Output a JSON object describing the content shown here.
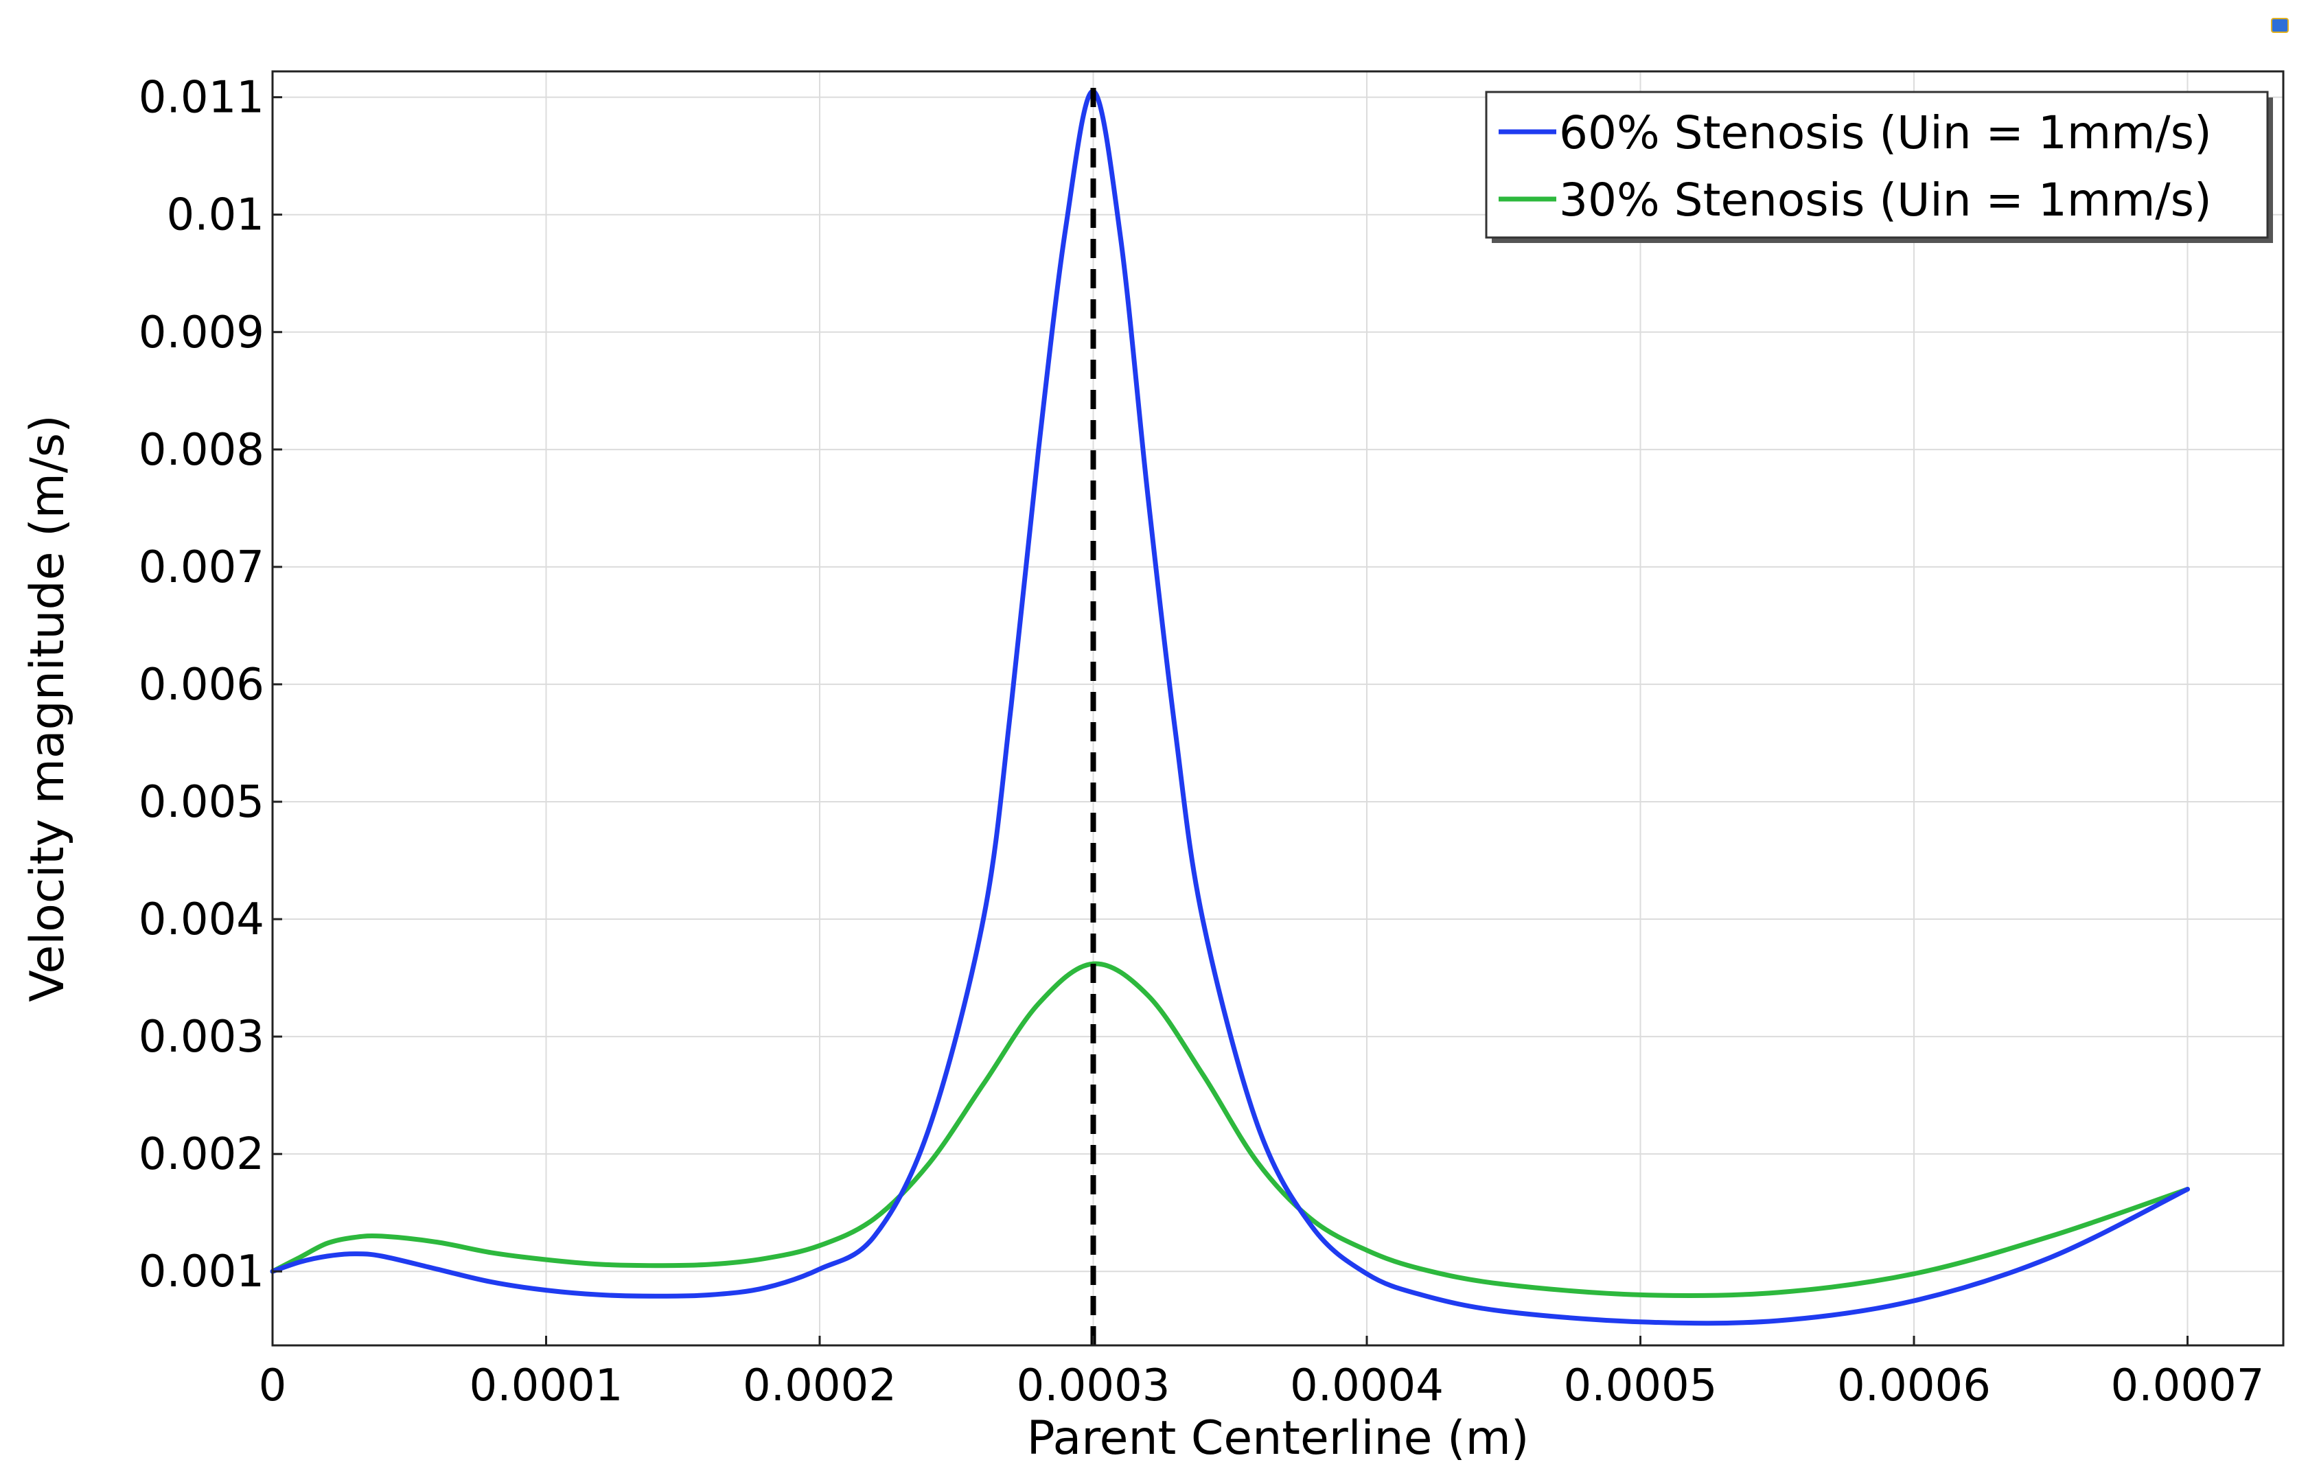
{
  "icons": {
    "corner": "snapshot-icon"
  },
  "chart_data": {
    "type": "line",
    "title": "",
    "xlabel": "Parent Centerline  (m)",
    "ylabel": "Velocity magnitude (m/s)",
    "xlim": [
      0,
      0.000735
    ],
    "ylim": [
      0.00037,
      0.01122
    ],
    "x_ticks": [
      0,
      0.0001,
      0.0002,
      0.0003,
      0.0004,
      0.0005,
      0.0006,
      0.0007
    ],
    "x_tick_labels": [
      "0",
      "0.0001",
      "0.0002",
      "0.0003",
      "0.0004",
      "0.0005",
      "0.0006",
      "0.0007"
    ],
    "y_ticks": [
      0.001,
      0.002,
      0.003,
      0.004,
      0.005,
      0.006,
      0.007,
      0.008,
      0.009,
      0.01,
      0.011
    ],
    "y_tick_labels": [
      "0.001",
      "0.002",
      "0.003",
      "0.004",
      "0.005",
      "0.006",
      "0.007",
      "0.008",
      "0.009",
      "0.01",
      "0.011"
    ],
    "grid": true,
    "legend_position": "top-right",
    "reference_line": {
      "x": 0.0003,
      "style": "dashed",
      "color": "#000000"
    },
    "series": [
      {
        "name": "60% Stenosis (Uin = 1mm/s)",
        "color": "#1f3bf0",
        "x": [
          0,
          1e-05,
          2e-05,
          3e-05,
          4e-05,
          6e-05,
          8e-05,
          0.0001,
          0.00012,
          0.00014,
          0.00016,
          0.00018,
          0.0002,
          0.00022,
          0.00024,
          0.00026,
          0.00027,
          0.00028,
          0.00029,
          0.0003,
          0.00031,
          0.00032,
          0.00033,
          0.00034,
          0.00036,
          0.00038,
          0.0004,
          0.00042,
          0.00045,
          0.0005,
          0.00055,
          0.0006,
          0.00065,
          0.0007
        ],
        "y": [
          0.001,
          0.00108,
          0.00113,
          0.00115,
          0.00113,
          0.00102,
          0.00091,
          0.00084,
          0.0008,
          0.00079,
          0.0008,
          0.00086,
          0.00102,
          0.0013,
          0.00222,
          0.00402,
          0.00582,
          0.008,
          0.0099,
          0.01105,
          0.0098,
          0.0076,
          0.0056,
          0.004,
          0.00225,
          0.00138,
          0.00098,
          0.0008,
          0.00066,
          0.00057,
          0.00058,
          0.00075,
          0.00112,
          0.0017
        ]
      },
      {
        "name": "30% Stenosis (Uin = 1mm/s)",
        "color": "#2db83d",
        "x": [
          0,
          1e-05,
          2e-05,
          3e-05,
          4e-05,
          6e-05,
          8e-05,
          0.0001,
          0.00012,
          0.00014,
          0.00016,
          0.00018,
          0.0002,
          0.00022,
          0.00024,
          0.00026,
          0.00028,
          0.0003,
          0.00032,
          0.00034,
          0.00036,
          0.00038,
          0.0004,
          0.00042,
          0.00045,
          0.0005,
          0.00055,
          0.0006,
          0.00065,
          0.0007
        ],
        "y": [
          0.001,
          0.00112,
          0.00124,
          0.00129,
          0.0013,
          0.00125,
          0.00116,
          0.0011,
          0.00106,
          0.00105,
          0.00106,
          0.00111,
          0.00122,
          0.00145,
          0.00192,
          0.0026,
          0.00328,
          0.00362,
          0.00335,
          0.00268,
          0.00193,
          0.00144,
          0.00118,
          0.00102,
          0.00089,
          0.0008,
          0.00082,
          0.00098,
          0.0013,
          0.0017
        ]
      }
    ]
  }
}
